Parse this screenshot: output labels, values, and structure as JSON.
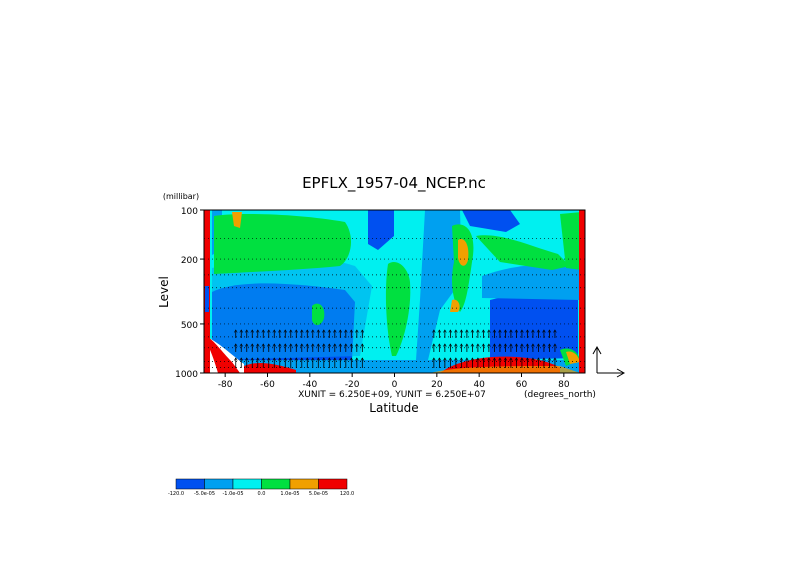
{
  "chart_data": {
    "type": "heatmap",
    "title": "EPFLX_1957-04_NCEP.nc",
    "xlabel": "Latitude",
    "ylabel": "Level",
    "y_unit_label": "(millibar)",
    "x_unit_label": "(degrees_north)",
    "unit_note": "XUNIT = 6.250E+09, YUNIT = 6.250E+07",
    "xlim": [
      -90,
      90
    ],
    "ylim": [
      1000,
      100
    ],
    "y_scale": "log",
    "x_ticks": [
      -80,
      -60,
      -40,
      -20,
      0,
      20,
      40,
      60,
      80
    ],
    "y_ticks": [
      100,
      200,
      500,
      1000
    ],
    "grid": "dotted horizontal lines at each pressure level",
    "colorbar": {
      "colors": [
        "#0050f0",
        "#00a0f0",
        "#00f0f0",
        "#00e040",
        "#f0a000",
        "#f00000"
      ],
      "labels": [
        "-120.0",
        "-5.0e-05",
        "-1.0e-05",
        "0.0",
        "1.0e-05",
        "5.0e-05",
        "120.0"
      ]
    }
  }
}
